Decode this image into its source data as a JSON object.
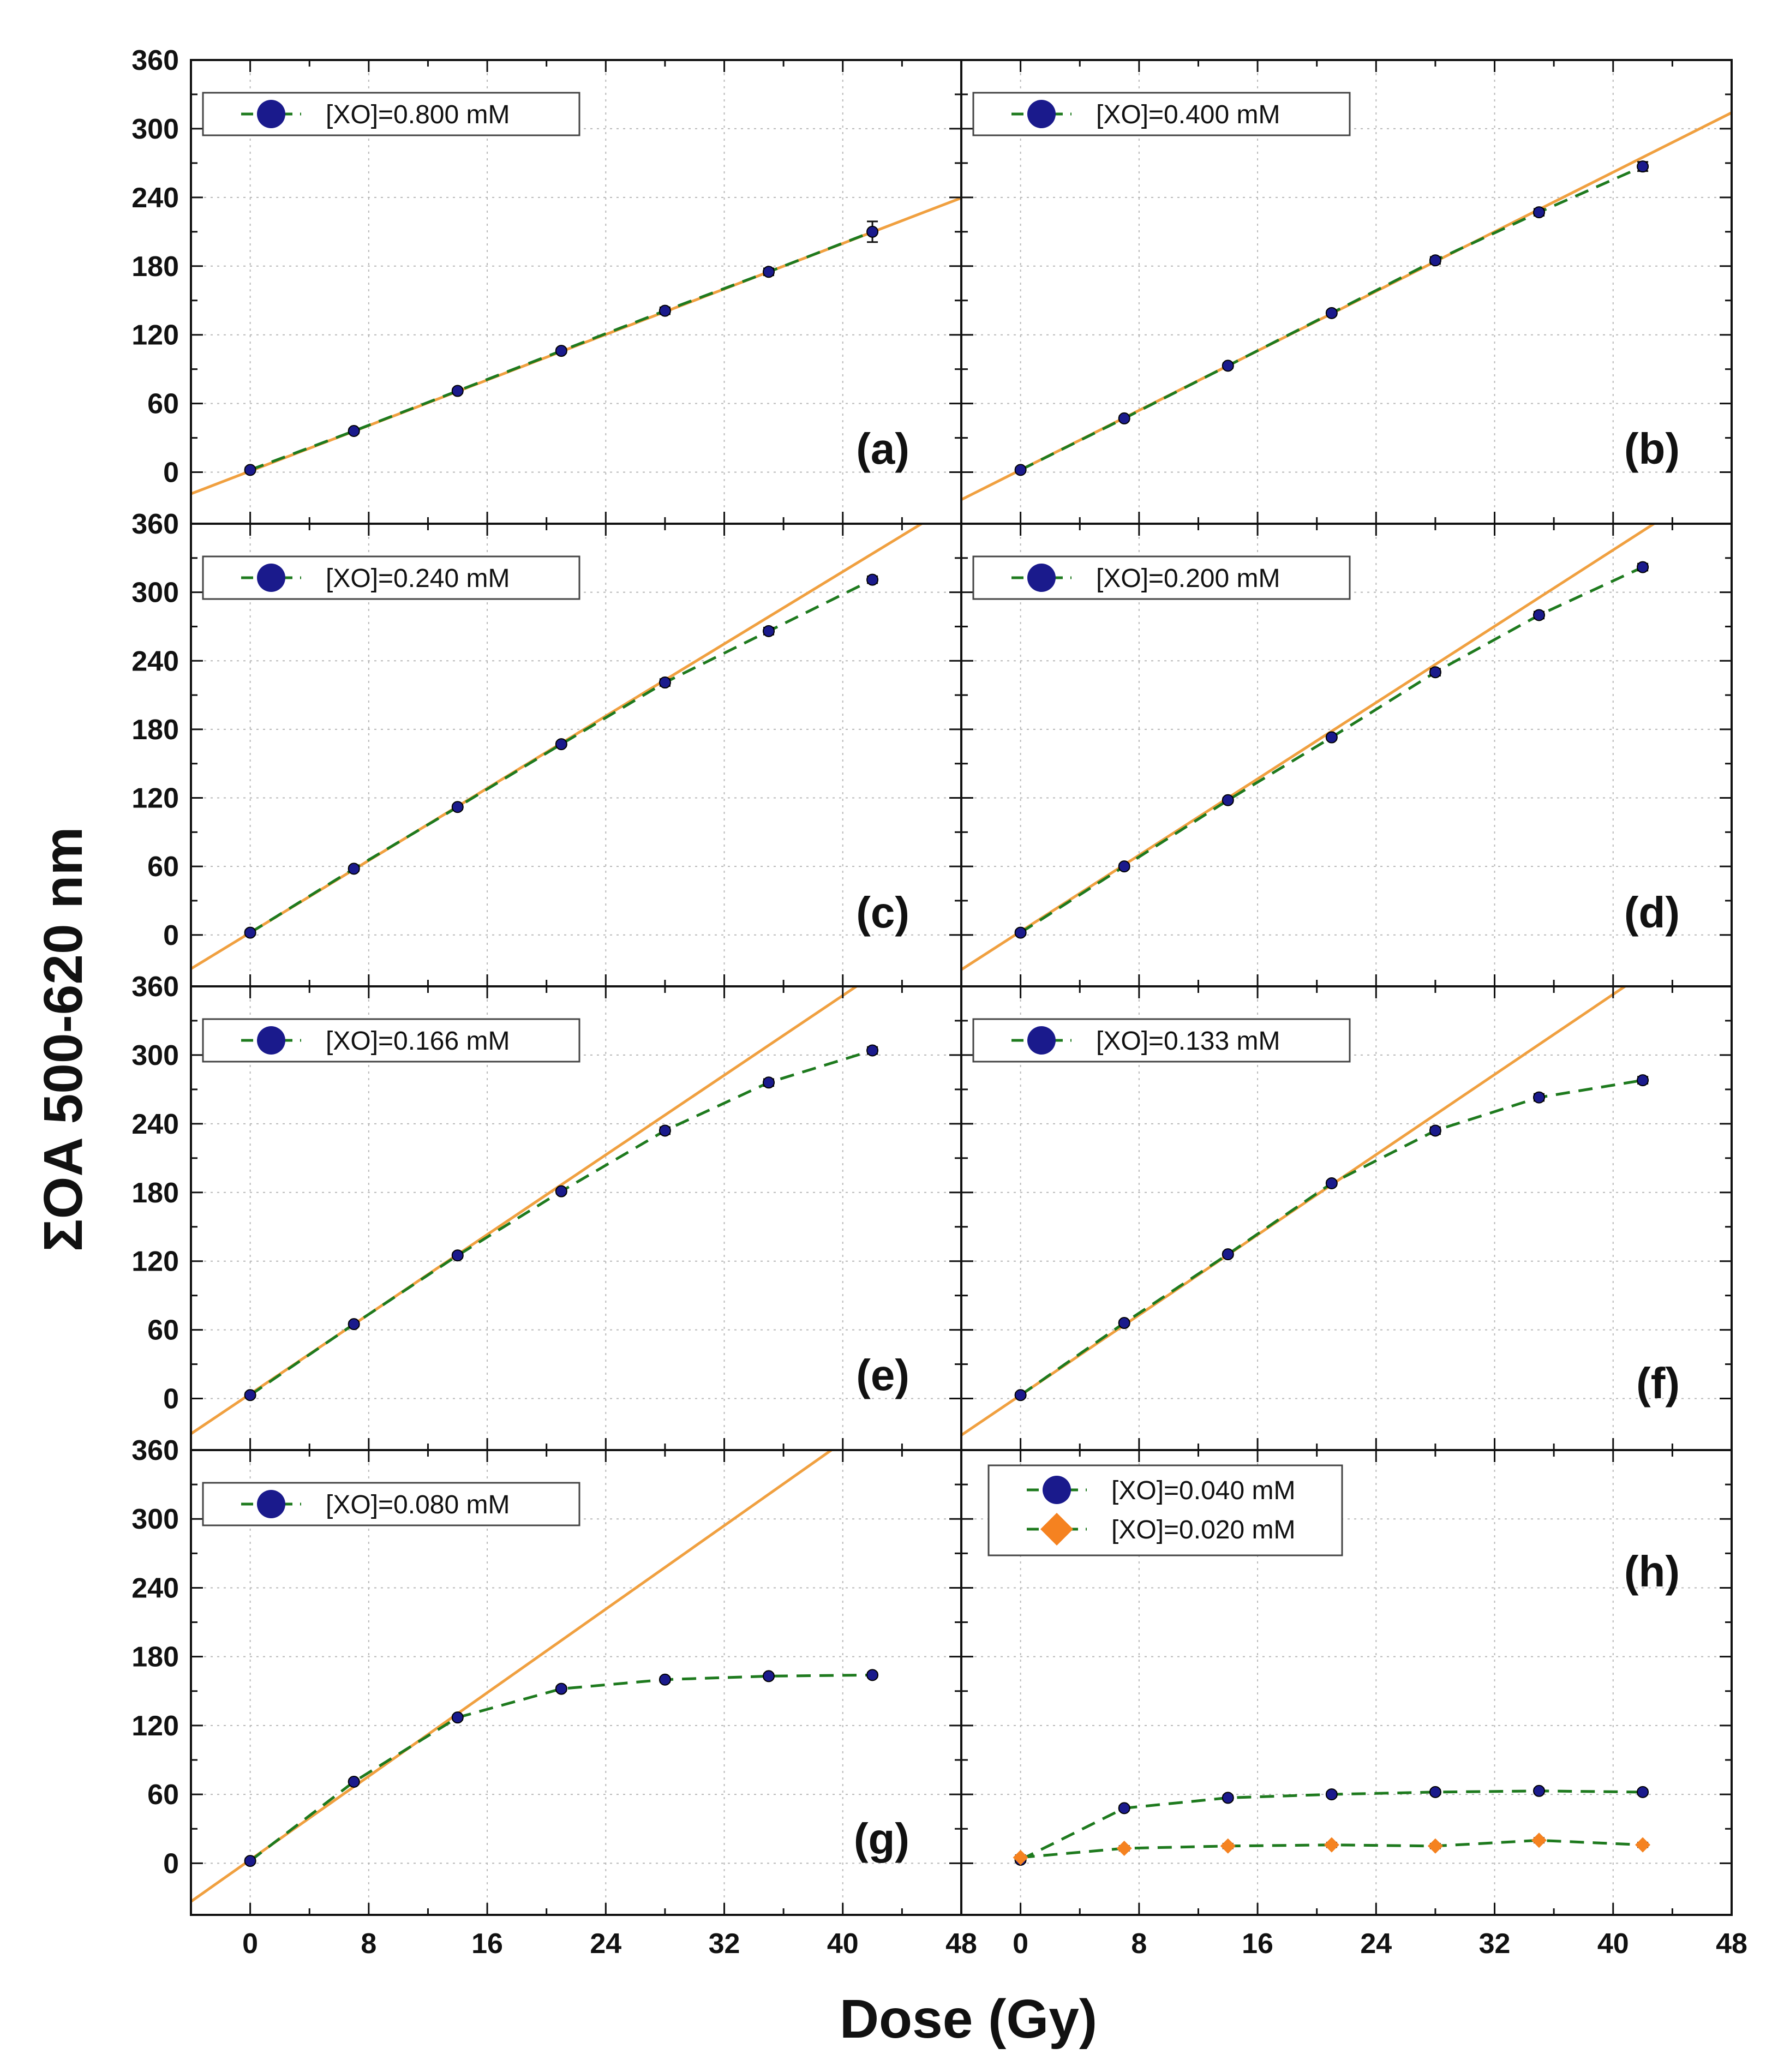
{
  "chart_data": {
    "type": "scatter",
    "xlabel": "Dose (Gy)",
    "ylabel": "ΣOA 500-620 nm",
    "xlim": [
      -4,
      48
    ],
    "ylim": [
      -45,
      360
    ],
    "x_ticks": [
      "0",
      "8",
      "16",
      "24",
      "32",
      "40",
      "48"
    ],
    "y_ticks": [
      "0",
      "60",
      "120",
      "180",
      "240",
      "300",
      "360"
    ],
    "grid": true,
    "colors": {
      "fit_line": "#F0A040",
      "dashed_curve": "#1E7A1E",
      "marker_blue": "#1A1A8C",
      "marker_orange": "#F58220"
    },
    "panels": [
      {
        "label": "(a)",
        "legend": [
          "[XO]=0.800 mM"
        ],
        "fit": {
          "slope": 4.97,
          "intercept": 1
        },
        "series": [
          {
            "name": "[XO]=0.800 mM",
            "marker": "circle",
            "x": [
              0,
              7,
              14,
              21,
              28,
              35,
              42
            ],
            "y": [
              2,
              36,
              71,
              106,
              141,
              175,
              210
            ],
            "yerr": [
              2,
              2,
              2,
              2,
              3,
              3,
              9
            ]
          }
        ]
      },
      {
        "label": "(b)",
        "legend": [
          "[XO]=0.400 mM"
        ],
        "fit": {
          "slope": 6.5,
          "intercept": 2
        },
        "series": [
          {
            "name": "[XO]=0.400 mM",
            "marker": "circle",
            "x": [
              0,
              7,
              14,
              21,
              28,
              35,
              42
            ],
            "y": [
              2,
              47,
              93,
              139,
              185,
              227,
              267
            ],
            "yerr": [
              2,
              2,
              2,
              2,
              3,
              3,
              4
            ]
          }
        ]
      },
      {
        "label": "(c)",
        "legend": [
          "[XO]=0.240 mM"
        ],
        "fit": {
          "slope": 7.9,
          "intercept": 2
        },
        "series": [
          {
            "name": "[XO]=0.240 mM",
            "marker": "circle",
            "x": [
              0,
              7,
              14,
              21,
              28,
              35,
              42
            ],
            "y": [
              2,
              58,
              112,
              167,
              221,
              266,
              311
            ],
            "yerr": [
              2,
              2,
              2,
              2,
              3,
              3,
              3
            ]
          }
        ]
      },
      {
        "label": "(d)",
        "legend": [
          "[XO]=0.200 mM"
        ],
        "fit": {
          "slope": 8.35,
          "intercept": 3
        },
        "series": [
          {
            "name": "[XO]=0.200 mM",
            "marker": "circle",
            "x": [
              0,
              7,
              14,
              21,
              28,
              35,
              42
            ],
            "y": [
              2,
              60,
              118,
              173,
              230,
              280,
              322
            ],
            "yerr": [
              2,
              2,
              2,
              2,
              3,
              3,
              3
            ]
          }
        ]
      },
      {
        "label": "(e)",
        "legend": [
          "[XO]=0.166 mM"
        ],
        "fit": {
          "slope": 8.7,
          "intercept": 4
        },
        "series": [
          {
            "name": "[XO]=0.166 mM",
            "marker": "circle",
            "x": [
              0,
              7,
              14,
              21,
              28,
              35,
              42
            ],
            "y": [
              3,
              65,
              125,
              181,
              234,
              276,
              304
            ],
            "yerr": [
              2,
              2,
              2,
              2,
              3,
              3,
              3
            ]
          }
        ]
      },
      {
        "label": "(f)",
        "legend": [
          "[XO]=0.133 mM"
        ],
        "fit": {
          "slope": 8.75,
          "intercept": 3
        },
        "series": [
          {
            "name": "[XO]=0.133 mM",
            "marker": "circle",
            "x": [
              0,
              7,
              14,
              21,
              28,
              35,
              42
            ],
            "y": [
              3,
              66,
              126,
              188,
              234,
              263,
              278
            ],
            "yerr": [
              2,
              2,
              2,
              2,
              3,
              3,
              3
            ]
          }
        ]
      },
      {
        "label": "(g)",
        "legend": [
          "[XO]=0.080 mM"
        ],
        "fit": {
          "slope": 9.1,
          "intercept": 3
        },
        "series": [
          {
            "name": "[XO]=0.080 mM",
            "marker": "circle",
            "x": [
              0,
              7,
              14,
              21,
              28,
              35,
              42
            ],
            "y": [
              2,
              71,
              127,
              152,
              160,
              163,
              164
            ],
            "yerr": [
              2,
              2,
              2,
              2,
              2,
              2,
              2
            ]
          }
        ]
      },
      {
        "label": "(h)",
        "legend": [
          "[XO]=0.040 mM",
          "[XO]=0.020 mM"
        ],
        "fit": null,
        "series": [
          {
            "name": "[XO]=0.040 mM",
            "marker": "circle",
            "x": [
              0,
              7,
              14,
              21,
              28,
              35,
              42
            ],
            "y": [
              3,
              48,
              57,
              60,
              62,
              63,
              62
            ],
            "yerr": [
              2,
              2,
              2,
              2,
              2,
              2,
              2
            ]
          },
          {
            "name": "[XO]=0.020 mM",
            "marker": "diamond",
            "x": [
              0,
              7,
              14,
              21,
              28,
              35,
              42
            ],
            "y": [
              5,
              13,
              15,
              16,
              15,
              20,
              16
            ],
            "yerr": [
              2,
              2,
              2,
              2,
              2,
              2,
              2
            ]
          }
        ]
      }
    ]
  }
}
